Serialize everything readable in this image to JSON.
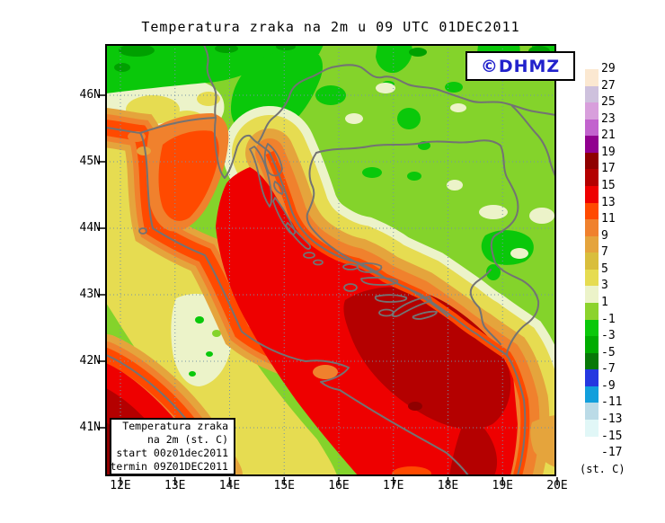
{
  "title": "Temperatura zraka na 2m u 09 UTC 01DEC2011",
  "watermark": {
    "text": "©DHMZ",
    "color": "#2222cc"
  },
  "map": {
    "lat_labels": [
      "46N",
      "45N",
      "44N",
      "43N",
      "42N",
      "41N"
    ],
    "lon_labels": [
      "12E",
      "13E",
      "14E",
      "15E",
      "16E",
      "17E",
      "18E",
      "19E",
      "20E"
    ]
  },
  "info_box": {
    "lines": [
      "Temperatura zraka",
      "na 2m (st. C)",
      "start 00z01dec2011",
      "termin 09Z01DEC2011"
    ]
  },
  "colorbar": {
    "unit_label": "(st. C)",
    "tick_labels": [
      "29",
      "27",
      "25",
      "23",
      "21",
      "19",
      "17",
      "15",
      "13",
      "11",
      "9",
      "7",
      "5",
      "3",
      "1",
      "-1",
      "-3",
      "-5",
      "-7",
      "-9",
      "-11",
      "-13",
      "-15",
      "-17"
    ],
    "box_colors": [
      "#FBE8D1",
      "#CEC1DD",
      "#D89FDC",
      "#C263CE",
      "#91008F",
      "#8F0000",
      "#B40000",
      "#EF0000",
      "#FF4A00",
      "#F0812D",
      "#E5A43C",
      "#D9BE3C",
      "#E6DC51",
      "#ECF3C9",
      "#8CD32C",
      "#0AC80A",
      "#00AC00",
      "#087808",
      "#2438E0",
      "#129FDC",
      "#BBDBE7",
      "#E1F7F7",
      "#FFFFFF"
    ]
  },
  "colors": {
    "border_line": "#737373",
    "grid_line": "#7593a8",
    "frame": "#000000"
  }
}
